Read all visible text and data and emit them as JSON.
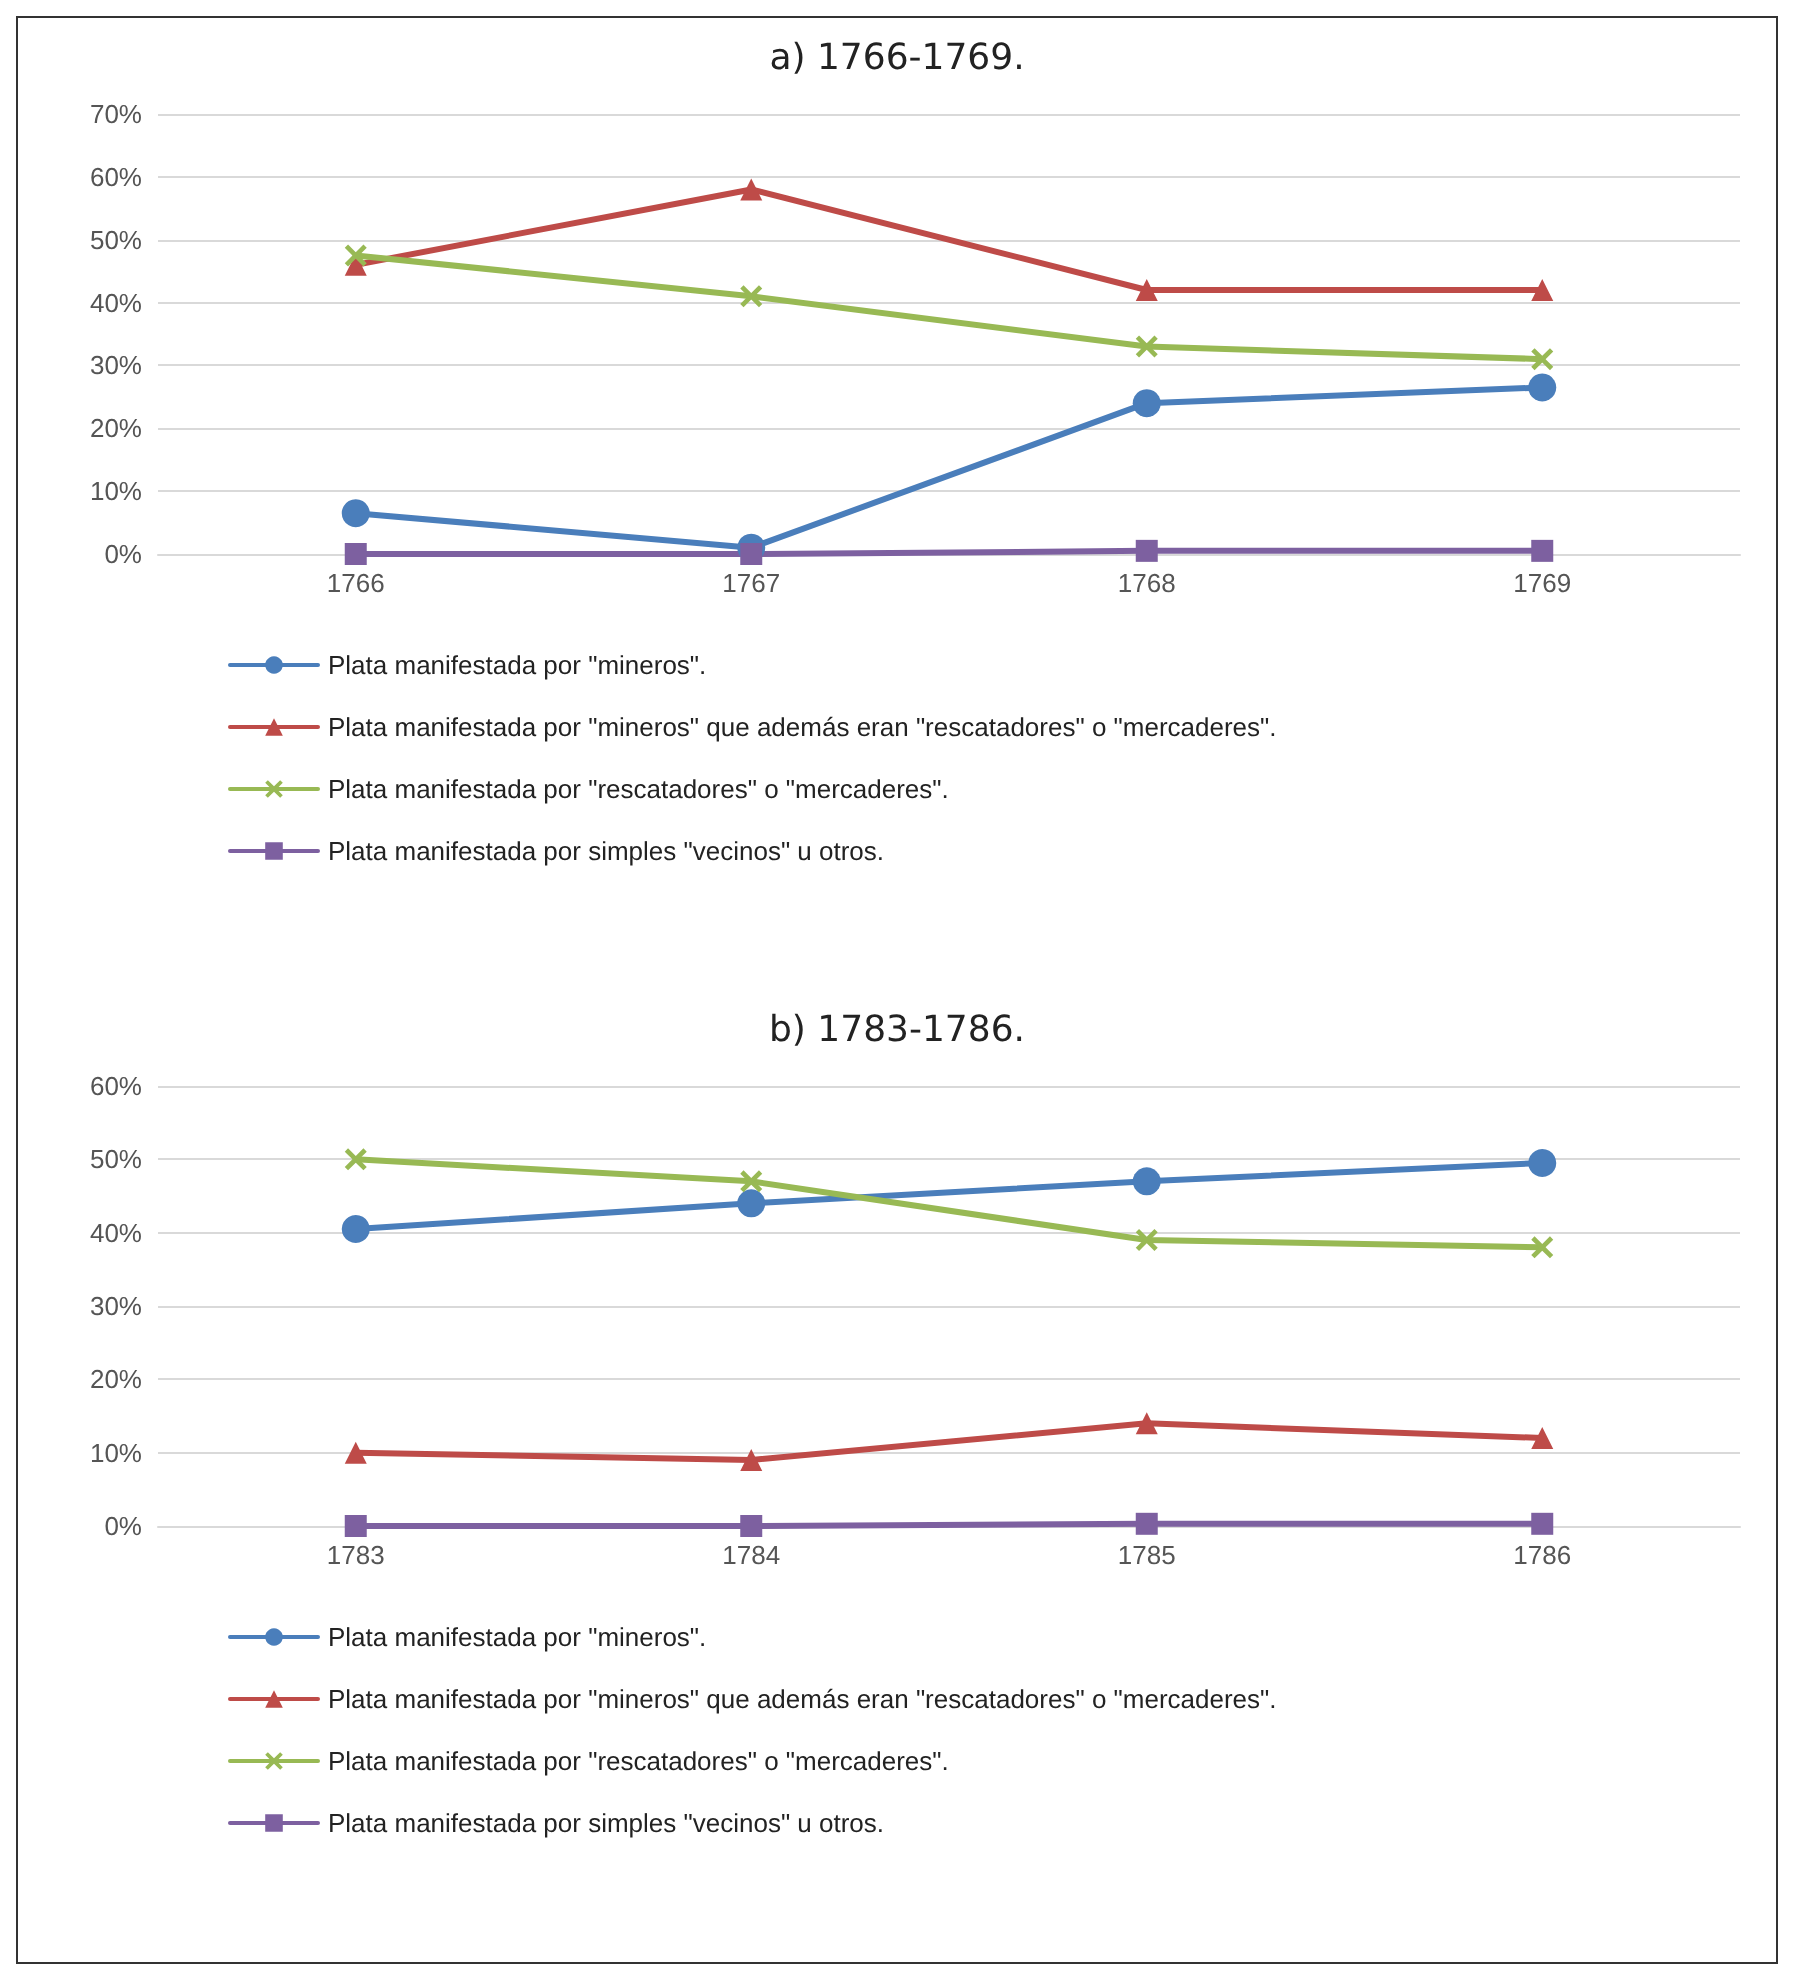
{
  "chart_data": [
    {
      "type": "line",
      "title": "a) 1766-1769.",
      "categories": [
        "1766",
        "1767",
        "1768",
        "1769"
      ],
      "series": [
        {
          "name": "Plata manifestada por \"mineros\".",
          "color": "#4a7ebb",
          "marker": "circle",
          "values": [
            6.5,
            1,
            24,
            26.5
          ]
        },
        {
          "name": "Plata manifestada por \"mineros\" que además eran \"rescatadores\" o \"mercaderes\".",
          "color": "#be4b48",
          "marker": "triangle",
          "values": [
            46,
            58,
            42,
            42
          ]
        },
        {
          "name": "Plata manifestada por \"rescatadores\" o \"mercaderes\".",
          "color": "#98b954",
          "marker": "cross",
          "values": [
            47.5,
            41,
            33,
            31
          ]
        },
        {
          "name": "Plata manifestada por simples \"vecinos\" u otros.",
          "color": "#7d60a0",
          "marker": "square",
          "values": [
            0,
            0,
            0.5,
            0.5
          ]
        }
      ],
      "ylim": [
        0,
        70
      ],
      "yticks": [
        {
          "value": 0,
          "label": "0%"
        },
        {
          "value": 10,
          "label": "10%"
        },
        {
          "value": 20,
          "label": "20%"
        },
        {
          "value": 30,
          "label": "30%"
        },
        {
          "value": 40,
          "label": "40%"
        },
        {
          "value": 50,
          "label": "50%"
        },
        {
          "value": 60,
          "label": "60%"
        },
        {
          "value": 70,
          "label": "70%"
        }
      ],
      "grid": "y",
      "legend": "bottom"
    },
    {
      "type": "line",
      "title": "b) 1783-1786.",
      "categories": [
        "1783",
        "1784",
        "1785",
        "1786"
      ],
      "series": [
        {
          "name": "Plata manifestada por \"mineros\".",
          "color": "#4a7ebb",
          "marker": "circle",
          "values": [
            40.5,
            44,
            47,
            49.5
          ]
        },
        {
          "name": "Plata manifestada por \"mineros\" que además eran \"rescatadores\" o \"mercaderes\".",
          "color": "#be4b48",
          "marker": "triangle",
          "values": [
            10,
            9,
            14,
            12
          ]
        },
        {
          "name": "Plata manifestada por \"rescatadores\" o \"mercaderes\".",
          "color": "#98b954",
          "marker": "cross",
          "values": [
            50,
            47,
            39,
            38
          ]
        },
        {
          "name": "Plata manifestada por simples \"vecinos\" u otros.",
          "color": "#7d60a0",
          "marker": "square",
          "values": [
            0,
            0,
            0.3,
            0.3
          ]
        }
      ],
      "ylim": [
        0,
        60
      ],
      "yticks": [
        {
          "value": 0,
          "label": "0%"
        },
        {
          "value": 10,
          "label": "10%"
        },
        {
          "value": 20,
          "label": "20%"
        },
        {
          "value": 30,
          "label": "30%"
        },
        {
          "value": 40,
          "label": "40%"
        },
        {
          "value": 50,
          "label": "50%"
        },
        {
          "value": 60,
          "label": "60%"
        }
      ],
      "grid": "y",
      "legend": "bottom"
    }
  ]
}
